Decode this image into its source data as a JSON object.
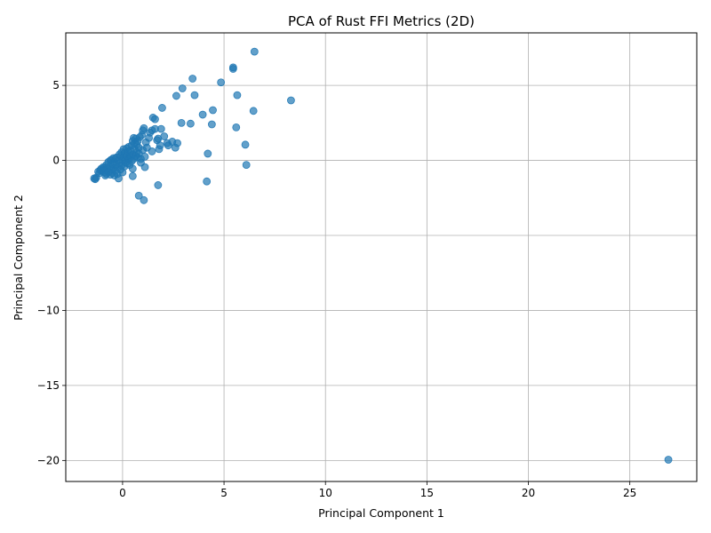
{
  "chart_data": {
    "type": "scatter",
    "title": "PCA of Rust FFI Metrics (2D)",
    "xlabel": "Principal Component 1",
    "ylabel": "Principal Component 2",
    "xlim": [
      -2.8,
      28.3
    ],
    "ylim": [
      -21.4,
      8.5
    ],
    "xticks": [
      0,
      5,
      10,
      15,
      20,
      25
    ],
    "yticks": [
      -20,
      -15,
      -10,
      -5,
      0,
      5
    ],
    "xtick_labels": [
      "0",
      "5",
      "10",
      "15",
      "20",
      "25"
    ],
    "ytick_labels": [
      "−20",
      "−15",
      "−10",
      "−5",
      "0",
      "5"
    ],
    "grid": true,
    "marker_color": "#1f77b4",
    "points": [
      [
        -1.4,
        -1.2
      ],
      [
        -1.35,
        -1.25
      ],
      [
        -1.3,
        -1.15
      ],
      [
        -1.2,
        -0.75
      ],
      [
        -1.15,
        -0.85
      ],
      [
        -1.1,
        -0.65
      ],
      [
        -1.05,
        -0.55
      ],
      [
        -1.0,
        -0.7
      ],
      [
        -0.95,
        -0.45
      ],
      [
        -0.9,
        -0.8
      ],
      [
        -0.9,
        -0.5
      ],
      [
        -0.85,
        -1.0
      ],
      [
        -0.85,
        -0.6
      ],
      [
        -0.8,
        -0.3
      ],
      [
        -0.8,
        -0.9
      ],
      [
        -0.75,
        -0.55
      ],
      [
        -0.7,
        -0.1
      ],
      [
        -0.7,
        -0.75
      ],
      [
        -0.65,
        -0.4
      ],
      [
        -0.6,
        0.0
      ],
      [
        -0.6,
        -0.95
      ],
      [
        -0.55,
        -0.6
      ],
      [
        -0.55,
        0.05
      ],
      [
        -0.5,
        -0.25
      ],
      [
        -0.5,
        -0.85
      ],
      [
        -0.45,
        0.15
      ],
      [
        -0.45,
        -0.5
      ],
      [
        -0.4,
        -0.1
      ],
      [
        -0.4,
        -1.0
      ],
      [
        -0.35,
        0.1
      ],
      [
        -0.35,
        -0.7
      ],
      [
        -0.3,
        -0.3
      ],
      [
        -0.3,
        0.2
      ],
      [
        -0.25,
        -0.9
      ],
      [
        -0.25,
        -0.45
      ],
      [
        -0.2,
        0.0
      ],
      [
        -0.2,
        -1.2
      ],
      [
        -0.15,
        -0.2
      ],
      [
        -0.15,
        0.4
      ],
      [
        -0.1,
        -0.6
      ],
      [
        -0.1,
        0.3
      ],
      [
        -0.05,
        -0.35
      ],
      [
        -0.05,
        0.55
      ],
      [
        0.0,
        0.0
      ],
      [
        0.0,
        -0.8
      ],
      [
        0.05,
        0.2
      ],
      [
        0.05,
        0.75
      ],
      [
        0.1,
        -0.4
      ],
      [
        0.1,
        0.5
      ],
      [
        0.15,
        0.05
      ],
      [
        0.15,
        -0.15
      ],
      [
        0.2,
        0.3
      ],
      [
        0.2,
        0.8
      ],
      [
        0.25,
        -0.2
      ],
      [
        0.25,
        0.6
      ],
      [
        0.3,
        0.1
      ],
      [
        0.3,
        0.9
      ],
      [
        0.35,
        0.35
      ],
      [
        0.35,
        -0.3
      ],
      [
        0.4,
        0.65
      ],
      [
        0.4,
        0.2
      ],
      [
        0.45,
        1.0
      ],
      [
        0.45,
        -0.05
      ],
      [
        0.5,
        0.4
      ],
      [
        0.5,
        1.3
      ],
      [
        0.5,
        -0.55
      ],
      [
        0.55,
        1.5
      ],
      [
        0.55,
        0.1
      ],
      [
        0.6,
        0.75
      ],
      [
        0.6,
        1.15
      ],
      [
        0.65,
        0.3
      ],
      [
        0.65,
        1.45
      ],
      [
        0.7,
        0.55
      ],
      [
        0.7,
        1.05
      ],
      [
        0.75,
        0.2
      ],
      [
        0.75,
        1.3
      ],
      [
        0.8,
        0.85
      ],
      [
        0.8,
        0.45
      ],
      [
        0.85,
        1.55
      ],
      [
        0.9,
        0.1
      ],
      [
        0.9,
        -0.15
      ],
      [
        0.95,
        1.7
      ],
      [
        1.0,
        2.0
      ],
      [
        1.0,
        0.7
      ],
      [
        1.05,
        2.15
      ],
      [
        1.1,
        0.25
      ],
      [
        1.1,
        -0.45
      ],
      [
        1.15,
        1.2
      ],
      [
        1.2,
        0.85
      ],
      [
        1.3,
        1.5
      ],
      [
        1.35,
        1.85
      ],
      [
        1.45,
        2.0
      ],
      [
        1.45,
        0.6
      ],
      [
        1.5,
        2.85
      ],
      [
        1.6,
        2.75
      ],
      [
        1.6,
        2.1
      ],
      [
        1.7,
        1.35
      ],
      [
        1.75,
        1.45
      ],
      [
        1.8,
        0.75
      ],
      [
        1.85,
        1.0
      ],
      [
        1.9,
        2.1
      ],
      [
        1.95,
        3.5
      ],
      [
        2.05,
        1.6
      ],
      [
        2.2,
        1.15
      ],
      [
        2.25,
        1.0
      ],
      [
        2.45,
        1.25
      ],
      [
        2.6,
        0.85
      ],
      [
        2.65,
        4.3
      ],
      [
        2.7,
        1.15
      ],
      [
        2.9,
        2.5
      ],
      [
        2.95,
        4.8
      ],
      [
        3.35,
        2.45
      ],
      [
        3.45,
        5.45
      ],
      [
        3.55,
        4.35
      ],
      [
        3.95,
        3.05
      ],
      [
        4.2,
        0.45
      ],
      [
        4.15,
        -1.4
      ],
      [
        4.4,
        2.4
      ],
      [
        4.45,
        3.35
      ],
      [
        4.85,
        5.2
      ],
      [
        5.45,
        6.2
      ],
      [
        5.45,
        6.1
      ],
      [
        5.6,
        2.2
      ],
      [
        5.65,
        4.35
      ],
      [
        6.05,
        1.05
      ],
      [
        6.1,
        -0.3
      ],
      [
        6.45,
        3.3
      ],
      [
        6.5,
        7.25
      ],
      [
        8.3,
        4.0
      ],
      [
        0.5,
        -1.05
      ],
      [
        1.75,
        -1.65
      ],
      [
        0.8,
        -2.35
      ],
      [
        1.05,
        -2.65
      ],
      [
        26.9,
        -19.95
      ]
    ]
  }
}
